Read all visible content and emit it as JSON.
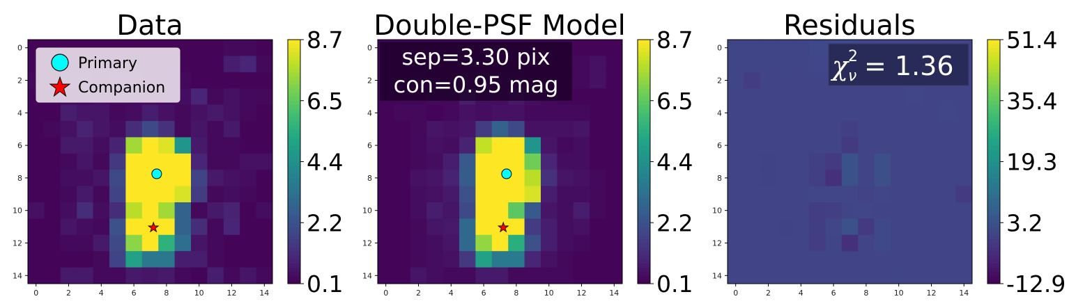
{
  "chart_data": [
    {
      "type": "heatmap",
      "title": "Data",
      "colormap": "viridis",
      "vlim": [
        0.1,
        8.7
      ],
      "colorbar_ticks": [
        "0.1",
        "2.2",
        "4.4",
        "6.5",
        "8.7"
      ],
      "xticks": [
        "0",
        "2",
        "4",
        "6",
        "8",
        "10",
        "12",
        "14"
      ],
      "yticks": [
        "0",
        "2",
        "4",
        "6",
        "8",
        "10",
        "12",
        "14"
      ],
      "legend": {
        "placement": "top-left",
        "entries": [
          "Primary",
          "Companion"
        ]
      },
      "markers": {
        "primary": [
          7.4,
          7.75
        ],
        "companion": [
          7.2,
          11.05
        ],
        "primary_color": "#00ffff",
        "companion_color": "#ff0000"
      },
      "values": [
        [
          0.2,
          0.2,
          0.2,
          0.2,
          0.2,
          0.2,
          0.2,
          0.2,
          0.2,
          0.2,
          0.2,
          0.2,
          0.3,
          0.3,
          0.2
        ],
        [
          0.2,
          0.2,
          0.4,
          0.4,
          0.4,
          0.3,
          0.3,
          0.3,
          0.3,
          0.2,
          0.2,
          0.2,
          0.8,
          1.0,
          0.3
        ],
        [
          0.3,
          0.2,
          0.5,
          0.5,
          0.4,
          0.5,
          0.5,
          0.4,
          0.3,
          0.3,
          0.2,
          0.2,
          0.2,
          0.2,
          0.2
        ],
        [
          0.2,
          0.2,
          0.3,
          0.3,
          0.4,
          0.3,
          0.3,
          0.3,
          0.3,
          0.4,
          1.0,
          0.3,
          0.5,
          0.3,
          0.3
        ],
        [
          0.2,
          0.2,
          0.8,
          0.6,
          0.6,
          0.3,
          0.4,
          0.8,
          0.5,
          0.3,
          0.5,
          0.7,
          0.5,
          0.3,
          0.2
        ],
        [
          0.2,
          0.3,
          0.5,
          0.9,
          0.6,
          0.4,
          1.2,
          2.0,
          1.3,
          0.3,
          0.6,
          0.3,
          0.7,
          0.2,
          0.2
        ],
        [
          0.2,
          0.2,
          0.7,
          0.7,
          0.4,
          0.9,
          7.5,
          8.7,
          8.3,
          4.5,
          0.7,
          0.3,
          0.3,
          0.2,
          0.2
        ],
        [
          0.2,
          0.2,
          0.3,
          0.6,
          0.3,
          1.5,
          8.7,
          8.7,
          8.7,
          8.7,
          1.0,
          0.3,
          0.3,
          0.5,
          0.5
        ],
        [
          0.2,
          0.2,
          0.4,
          0.4,
          0.6,
          2.0,
          8.7,
          8.7,
          8.7,
          8.7,
          1.8,
          0.7,
          0.5,
          0.4,
          0.2
        ],
        [
          0.2,
          0.2,
          0.3,
          0.7,
          0.3,
          1.8,
          8.7,
          8.7,
          8.7,
          8.2,
          1.6,
          0.3,
          0.4,
          0.3,
          0.2
        ],
        [
          0.5,
          0.2,
          0.4,
          1.2,
          0.4,
          1.2,
          7.8,
          8.7,
          7.5,
          2.8,
          0.3,
          0.7,
          0.9,
          0.2,
          0.4
        ],
        [
          0.2,
          0.2,
          0.6,
          0.4,
          0.3,
          2.2,
          8.7,
          8.7,
          8.7,
          2.8,
          1.2,
          0.3,
          1.0,
          0.2,
          0.2
        ],
        [
          0.2,
          0.2,
          0.3,
          0.3,
          0.7,
          2.0,
          7.2,
          8.7,
          5.6,
          3.2,
          0.6,
          0.3,
          0.2,
          0.2,
          0.2
        ],
        [
          0.2,
          0.2,
          0.2,
          0.2,
          0.3,
          1.8,
          5.0,
          3.5,
          3.5,
          0.8,
          0.8,
          0.3,
          0.2,
          0.2,
          0.2
        ],
        [
          0.2,
          0.2,
          0.7,
          0.7,
          0.3,
          0.3,
          0.7,
          0.6,
          0.7,
          0.3,
          0.2,
          0.8,
          0.3,
          0.6,
          0.3
        ]
      ]
    },
    {
      "type": "heatmap",
      "title": "Double-PSF Model",
      "colormap": "viridis",
      "vlim": [
        0.1,
        8.7
      ],
      "colorbar_ticks": [
        "0.1",
        "2.2",
        "4.4",
        "6.5",
        "8.7"
      ],
      "xticks": [
        "0",
        "2",
        "4",
        "6",
        "8",
        "10",
        "12",
        "14"
      ],
      "yticks": [
        "0",
        "2",
        "4",
        "6",
        "8",
        "10",
        "12",
        "14"
      ],
      "annotation": [
        "sep=3.30 pix",
        "con=0.95 mag"
      ],
      "markers": {
        "primary": [
          7.4,
          7.75
        ],
        "companion": [
          7.2,
          11.05
        ],
        "primary_color": "#00ffff",
        "companion_color": "#ff0000"
      },
      "values": [
        [
          0.2,
          0.2,
          0.2,
          0.2,
          0.2,
          0.2,
          0.2,
          0.2,
          0.2,
          0.2,
          0.2,
          0.2,
          0.2,
          0.2,
          0.2
        ],
        [
          0.2,
          0.2,
          0.2,
          0.2,
          0.2,
          0.2,
          0.2,
          0.2,
          0.2,
          0.2,
          0.2,
          0.2,
          0.3,
          0.5,
          0.2
        ],
        [
          0.2,
          0.2,
          0.3,
          0.2,
          0.2,
          0.3,
          0.3,
          0.3,
          0.3,
          0.2,
          0.2,
          0.2,
          0.3,
          0.5,
          0.2
        ],
        [
          0.2,
          0.2,
          0.2,
          0.3,
          0.3,
          0.8,
          0.4,
          0.4,
          0.7,
          0.4,
          0.3,
          0.2,
          0.2,
          0.2,
          0.2
        ],
        [
          0.2,
          0.3,
          0.3,
          0.2,
          0.3,
          0.5,
          0.4,
          0.5,
          0.5,
          0.3,
          0.3,
          0.3,
          0.3,
          0.2,
          0.2
        ],
        [
          0.2,
          0.2,
          0.3,
          0.6,
          0.5,
          0.6,
          1.6,
          2.8,
          2.0,
          0.5,
          0.5,
          0.5,
          0.6,
          0.2,
          0.2
        ],
        [
          0.2,
          0.2,
          0.3,
          0.5,
          0.4,
          0.9,
          7.9,
          8.7,
          8.7,
          4.5,
          0.6,
          0.3,
          0.4,
          0.2,
          0.2
        ],
        [
          0.2,
          0.2,
          0.3,
          0.4,
          0.8,
          2.5,
          8.7,
          8.7,
          8.7,
          6.8,
          1.0,
          0.4,
          0.4,
          0.2,
          0.2
        ],
        [
          0.2,
          0.2,
          0.5,
          0.6,
          0.9,
          2.6,
          8.7,
          8.7,
          8.7,
          7.8,
          1.3,
          0.6,
          0.5,
          0.3,
          0.2
        ],
        [
          0.2,
          0.2,
          0.4,
          0.5,
          0.7,
          2.2,
          8.7,
          8.7,
          8.7,
          8.2,
          0.8,
          0.4,
          0.4,
          0.3,
          0.2
        ],
        [
          0.2,
          0.2,
          0.4,
          0.8,
          0.6,
          2.0,
          8.7,
          8.7,
          6.5,
          2.5,
          0.6,
          0.4,
          0.8,
          0.3,
          0.2
        ],
        [
          0.2,
          0.2,
          0.3,
          0.6,
          0.7,
          3.0,
          8.7,
          8.7,
          8.7,
          1.6,
          0.8,
          0.4,
          0.5,
          0.2,
          0.2
        ],
        [
          0.2,
          0.2,
          0.3,
          0.4,
          0.6,
          3.0,
          7.3,
          8.7,
          5.5,
          2.2,
          0.8,
          0.4,
          0.3,
          0.2,
          0.2
        ],
        [
          0.2,
          0.2,
          0.3,
          0.4,
          0.5,
          1.5,
          5.0,
          3.6,
          3.6,
          1.0,
          0.5,
          0.3,
          0.2,
          0.2,
          0.2
        ],
        [
          0.2,
          0.2,
          0.6,
          0.4,
          0.3,
          0.3,
          0.7,
          0.7,
          0.3,
          0.3,
          0.3,
          0.3,
          0.2,
          0.2,
          0.2
        ]
      ]
    },
    {
      "type": "heatmap",
      "title": "Residuals",
      "colormap": "viridis",
      "vlim": [
        -12.9,
        51.4
      ],
      "colorbar_ticks": [
        "-12.9",
        "3.2",
        "19.3",
        "35.4",
        "51.4"
      ],
      "xticks": [
        "0",
        "2",
        "4",
        "6",
        "8",
        "10",
        "12",
        "14"
      ],
      "yticks": [
        "0",
        "2",
        "4",
        "6",
        "8",
        "10",
        "12",
        "14"
      ],
      "annotation_prefix": "χ",
      "annotation_sub": "ν",
      "annotation_sup": "2",
      "annotation_value": "= 1.36",
      "values": [
        [
          0.3,
          0.3,
          0.3,
          0.3,
          0.3,
          0.8,
          0.8,
          0.8,
          0.3,
          0.3,
          0.3,
          0.3,
          0.3,
          0.3,
          0.3
        ],
        [
          0.3,
          0.3,
          0.3,
          0.3,
          0.3,
          0.5,
          0.5,
          0.5,
          0.3,
          0.3,
          0.3,
          0.3,
          0.3,
          0.3,
          0.3
        ],
        [
          0.3,
          -1.5,
          0.2,
          0.2,
          0.2,
          0.2,
          0.2,
          0.2,
          0.2,
          0.2,
          0.2,
          0.2,
          0.2,
          0.2,
          0.2
        ],
        [
          0.2,
          0.2,
          0.2,
          0.2,
          0.2,
          0.2,
          0.2,
          0.2,
          0.2,
          0.2,
          0.2,
          0.5,
          0.2,
          0.2,
          0.2
        ],
        [
          0.2,
          0.2,
          0.2,
          0.2,
          0.2,
          0.0,
          0.0,
          0.0,
          0.0,
          0.0,
          0.2,
          0.2,
          0.2,
          0.4,
          0.2
        ],
        [
          0.2,
          0.0,
          0.2,
          0.2,
          0.0,
          0.0,
          0.0,
          -1.0,
          0.0,
          0.0,
          0.0,
          0.2,
          0.2,
          0.2,
          0.2
        ],
        [
          0.2,
          0.0,
          0.2,
          0.2,
          0.0,
          0.0,
          0.0,
          -2.0,
          0.0,
          0.0,
          0.0,
          0.2,
          0.2,
          0.2,
          0.2
        ],
        [
          0.2,
          0.0,
          -0.2,
          0.0,
          0.0,
          -0.8,
          -2.0,
          3.0,
          0.0,
          2.5,
          0.0,
          0.2,
          0.2,
          0.2,
          0.2
        ],
        [
          0.2,
          0.0,
          -0.2,
          0.0,
          0.0,
          -1.0,
          -4.0,
          3.0,
          0.0,
          2.5,
          0.0,
          0.2,
          0.2,
          0.2,
          0.2
        ],
        [
          0.2,
          0.0,
          0.0,
          0.0,
          0.0,
          0.4,
          0.4,
          0.4,
          -0.5,
          0.4,
          0.2,
          0.2,
          0.2,
          0.2,
          -2.0
        ],
        [
          0.2,
          0.0,
          0.0,
          0.0,
          0.0,
          -1.5,
          -1.0,
          0.3,
          0.5,
          0.0,
          0.2,
          0.2,
          0.2,
          0.2,
          0.2
        ],
        [
          0.2,
          0.0,
          0.0,
          -0.2,
          0.0,
          -1.2,
          0.5,
          3.0,
          -2.0,
          0.8,
          0.0,
          0.2,
          0.2,
          0.2,
          0.2
        ],
        [
          0.2,
          0.0,
          0.2,
          0.0,
          0.0,
          -1.5,
          0.3,
          -4.0,
          0.0,
          1.0,
          0.0,
          0.0,
          0.0,
          0.0,
          0.0
        ],
        [
          0.2,
          0.0,
          0.0,
          0.0,
          0.0,
          0.2,
          0.0,
          0.0,
          0.0,
          0.0,
          0.0,
          0.2,
          0.2,
          0.2,
          0.2
        ],
        [
          0.2,
          0.0,
          0.0,
          0.0,
          0.0,
          0.0,
          0.0,
          0.0,
          0.0,
          0.0,
          0.3,
          0.2,
          0.2,
          0.2,
          0.2
        ]
      ]
    }
  ]
}
